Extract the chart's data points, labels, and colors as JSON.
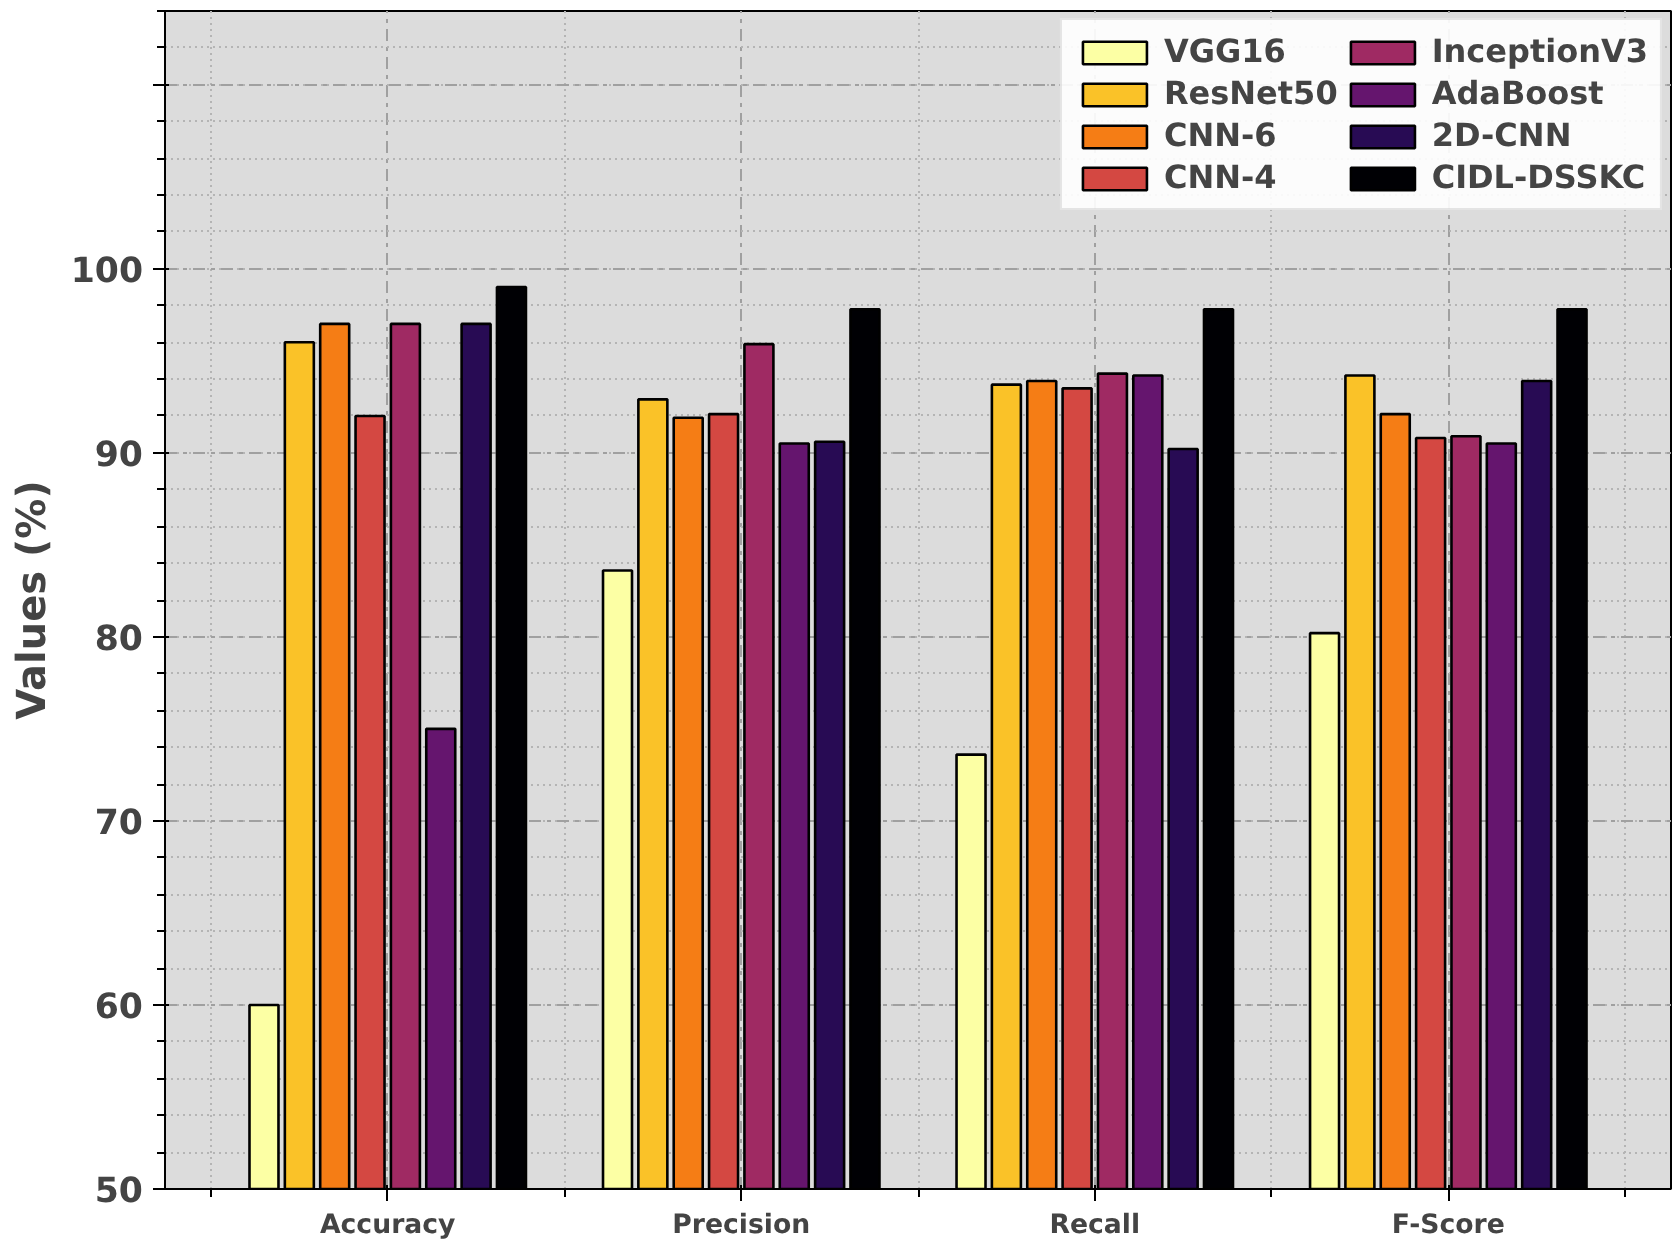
{
  "chart_data": {
    "type": "bar",
    "ylabel": "Values (%)",
    "categories": [
      "Accuracy",
      "Precision",
      "Recall",
      "F-Score"
    ],
    "series": [
      {
        "name": "VGG16",
        "color": "#fcffa4",
        "values": [
          60,
          83.6,
          73.6,
          80.2
        ]
      },
      {
        "name": "ResNet50",
        "color": "#fac228",
        "values": [
          96,
          92.9,
          93.7,
          94.2
        ]
      },
      {
        "name": "CNN-6",
        "color": "#f57d15",
        "values": [
          97,
          91.9,
          93.9,
          92.1
        ]
      },
      {
        "name": "CNN-4",
        "color": "#d44842",
        "values": [
          92,
          92.1,
          93.5,
          90.8
        ]
      },
      {
        "name": "InceptionV3",
        "color": "#9f2a63",
        "values": [
          97,
          95.9,
          94.3,
          90.9
        ]
      },
      {
        "name": "AdaBoost",
        "color": "#65156e",
        "values": [
          75,
          90.5,
          94.2,
          90.5
        ]
      },
      {
        "name": "2D-CNN",
        "color": "#280b54",
        "values": [
          97,
          90.6,
          90.2,
          93.9
        ]
      },
      {
        "name": "CIDL-DSSKC",
        "color": "#000004",
        "values": [
          99,
          97.8,
          97.8,
          97.8
        ]
      }
    ],
    "ylim": [
      50,
      114
    ],
    "yticks": [
      50,
      60,
      70,
      80,
      90,
      100,
      {
        "value": 110,
        "label": null
      }
    ],
    "grid": true,
    "legend": "top right"
  }
}
